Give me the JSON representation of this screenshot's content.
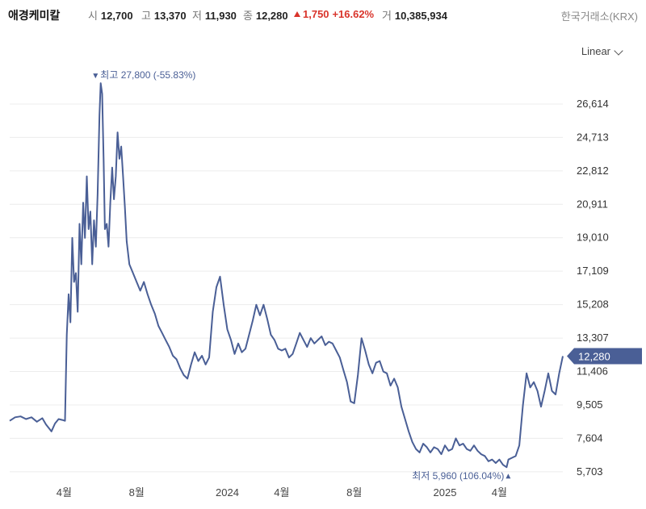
{
  "header": {
    "name": "애경케미칼",
    "open_label": "시",
    "open": "12,700",
    "high_label": "고",
    "high": "13,370",
    "low_label": "저",
    "low": "11,930",
    "close_label": "종",
    "close": "12,280",
    "change": "1,750",
    "change_pct": "+16.62%",
    "volume_label": "거",
    "volume": "10,385,934",
    "exchange": "한국거래소(KRX)"
  },
  "controls": {
    "scale": "Linear"
  },
  "colors": {
    "line": "#4a5f96",
    "up": "#d9342b",
    "grid": "#ececec",
    "badge": "#4a5f96"
  },
  "chart_data": {
    "type": "line",
    "y_ticks": [
      "26,614",
      "24,713",
      "22,812",
      "20,911",
      "19,010",
      "17,109",
      "15,208",
      "13,307",
      "11,406",
      "9,505",
      "7,604",
      "5,703"
    ],
    "y_tick_values": [
      26614,
      24713,
      22812,
      20911,
      19010,
      17109,
      15208,
      13307,
      11406,
      9505,
      7604,
      5703
    ],
    "ylim": [
      5100,
      28400
    ],
    "x_ticks": [
      "4월",
      "8월",
      "2024",
      "4월",
      "8월",
      "2025",
      "4월"
    ],
    "x_tick_positions": [
      3,
      7,
      12,
      15,
      19,
      24,
      27
    ],
    "xlim": [
      0,
      30.5
    ],
    "last_value": 12280,
    "last_label": "12,280",
    "max_annotation": "최고 27,800 (-55.83%)",
    "min_annotation": "최저 5,960 (106.04%)",
    "max_point": [
      5.0,
      27800
    ],
    "min_point": [
      27.4,
      5960
    ],
    "series": [
      {
        "values": [
          [
            0.0,
            8600
          ],
          [
            0.3,
            8800
          ],
          [
            0.6,
            8850
          ],
          [
            0.9,
            8700
          ],
          [
            1.2,
            8800
          ],
          [
            1.5,
            8550
          ],
          [
            1.8,
            8750
          ],
          [
            2.0,
            8400
          ],
          [
            2.3,
            8000
          ],
          [
            2.5,
            8450
          ],
          [
            2.7,
            8700
          ],
          [
            2.9,
            8650
          ],
          [
            3.05,
            8600
          ],
          [
            3.15,
            13500
          ],
          [
            3.25,
            15800
          ],
          [
            3.35,
            14200
          ],
          [
            3.45,
            19000
          ],
          [
            3.55,
            16500
          ],
          [
            3.65,
            17000
          ],
          [
            3.75,
            14800
          ],
          [
            3.85,
            19800
          ],
          [
            3.95,
            17500
          ],
          [
            4.05,
            21000
          ],
          [
            4.15,
            19000
          ],
          [
            4.25,
            22500
          ],
          [
            4.35,
            19500
          ],
          [
            4.45,
            20500
          ],
          [
            4.55,
            17500
          ],
          [
            4.65,
            20000
          ],
          [
            4.75,
            18500
          ],
          [
            4.85,
            21500
          ],
          [
            4.95,
            26000
          ],
          [
            5.02,
            27800
          ],
          [
            5.1,
            27200
          ],
          [
            5.18,
            23500
          ],
          [
            5.25,
            19500
          ],
          [
            5.35,
            19800
          ],
          [
            5.45,
            18500
          ],
          [
            5.55,
            21000
          ],
          [
            5.65,
            23000
          ],
          [
            5.75,
            21200
          ],
          [
            5.85,
            22500
          ],
          [
            5.95,
            25000
          ],
          [
            6.05,
            23500
          ],
          [
            6.15,
            24200
          ],
          [
            6.25,
            22500
          ],
          [
            6.35,
            20800
          ],
          [
            6.45,
            18800
          ],
          [
            6.6,
            17500
          ],
          [
            6.8,
            17000
          ],
          [
            7.0,
            16500
          ],
          [
            7.2,
            16000
          ],
          [
            7.4,
            16500
          ],
          [
            7.6,
            15800
          ],
          [
            7.8,
            15200
          ],
          [
            8.0,
            14700
          ],
          [
            8.2,
            14000
          ],
          [
            8.4,
            13600
          ],
          [
            8.6,
            13200
          ],
          [
            8.8,
            12800
          ],
          [
            9.0,
            12300
          ],
          [
            9.2,
            12100
          ],
          [
            9.4,
            11600
          ],
          [
            9.6,
            11200
          ],
          [
            9.8,
            11000
          ],
          [
            10.0,
            11800
          ],
          [
            10.2,
            12500
          ],
          [
            10.4,
            12000
          ],
          [
            10.6,
            12300
          ],
          [
            10.8,
            11800
          ],
          [
            11.0,
            12200
          ],
          [
            11.2,
            14800
          ],
          [
            11.4,
            16200
          ],
          [
            11.6,
            16800
          ],
          [
            11.8,
            15200
          ],
          [
            12.0,
            13800
          ],
          [
            12.2,
            13200
          ],
          [
            12.4,
            12400
          ],
          [
            12.6,
            13000
          ],
          [
            12.8,
            12500
          ],
          [
            13.0,
            12700
          ],
          [
            13.2,
            13500
          ],
          [
            13.4,
            14300
          ],
          [
            13.6,
            15200
          ],
          [
            13.8,
            14600
          ],
          [
            14.0,
            15200
          ],
          [
            14.2,
            14400
          ],
          [
            14.4,
            13500
          ],
          [
            14.6,
            13200
          ],
          [
            14.8,
            12700
          ],
          [
            15.0,
            12600
          ],
          [
            15.2,
            12700
          ],
          [
            15.4,
            12200
          ],
          [
            15.6,
            12400
          ],
          [
            15.8,
            13000
          ],
          [
            16.0,
            13600
          ],
          [
            16.2,
            13200
          ],
          [
            16.4,
            12800
          ],
          [
            16.6,
            13300
          ],
          [
            16.8,
            13000
          ],
          [
            17.0,
            13200
          ],
          [
            17.2,
            13400
          ],
          [
            17.4,
            12900
          ],
          [
            17.6,
            13100
          ],
          [
            17.8,
            13000
          ],
          [
            18.0,
            12600
          ],
          [
            18.2,
            12200
          ],
          [
            18.4,
            11500
          ],
          [
            18.6,
            10800
          ],
          [
            18.8,
            9700
          ],
          [
            19.0,
            9600
          ],
          [
            19.2,
            11200
          ],
          [
            19.4,
            13300
          ],
          [
            19.6,
            12600
          ],
          [
            19.8,
            11800
          ],
          [
            20.0,
            11300
          ],
          [
            20.2,
            11900
          ],
          [
            20.4,
            12000
          ],
          [
            20.6,
            11400
          ],
          [
            20.8,
            11300
          ],
          [
            21.0,
            10600
          ],
          [
            21.2,
            11000
          ],
          [
            21.4,
            10500
          ],
          [
            21.6,
            9400
          ],
          [
            21.8,
            8700
          ],
          [
            22.0,
            8000
          ],
          [
            22.2,
            7400
          ],
          [
            22.4,
            7000
          ],
          [
            22.6,
            6800
          ],
          [
            22.8,
            7300
          ],
          [
            23.0,
            7100
          ],
          [
            23.2,
            6800
          ],
          [
            23.4,
            7100
          ],
          [
            23.6,
            7000
          ],
          [
            23.8,
            6700
          ],
          [
            24.0,
            7200
          ],
          [
            24.2,
            6900
          ],
          [
            24.4,
            7000
          ],
          [
            24.6,
            7600
          ],
          [
            24.8,
            7200
          ],
          [
            25.0,
            7300
          ],
          [
            25.2,
            7000
          ],
          [
            25.4,
            6900
          ],
          [
            25.6,
            7200
          ],
          [
            25.8,
            6900
          ],
          [
            26.0,
            6700
          ],
          [
            26.2,
            6600
          ],
          [
            26.4,
            6300
          ],
          [
            26.6,
            6400
          ],
          [
            26.8,
            6200
          ],
          [
            27.0,
            6400
          ],
          [
            27.2,
            6100
          ],
          [
            27.4,
            5960
          ],
          [
            27.5,
            6400
          ],
          [
            27.7,
            6500
          ],
          [
            27.9,
            6600
          ],
          [
            28.1,
            7200
          ],
          [
            28.3,
            9500
          ],
          [
            28.5,
            11300
          ],
          [
            28.7,
            10500
          ],
          [
            28.9,
            10800
          ],
          [
            29.1,
            10300
          ],
          [
            29.3,
            9400
          ],
          [
            29.5,
            10300
          ],
          [
            29.7,
            11300
          ],
          [
            29.9,
            10300
          ],
          [
            30.1,
            10100
          ],
          [
            30.3,
            11300
          ],
          [
            30.5,
            12280
          ]
        ]
      }
    ]
  }
}
